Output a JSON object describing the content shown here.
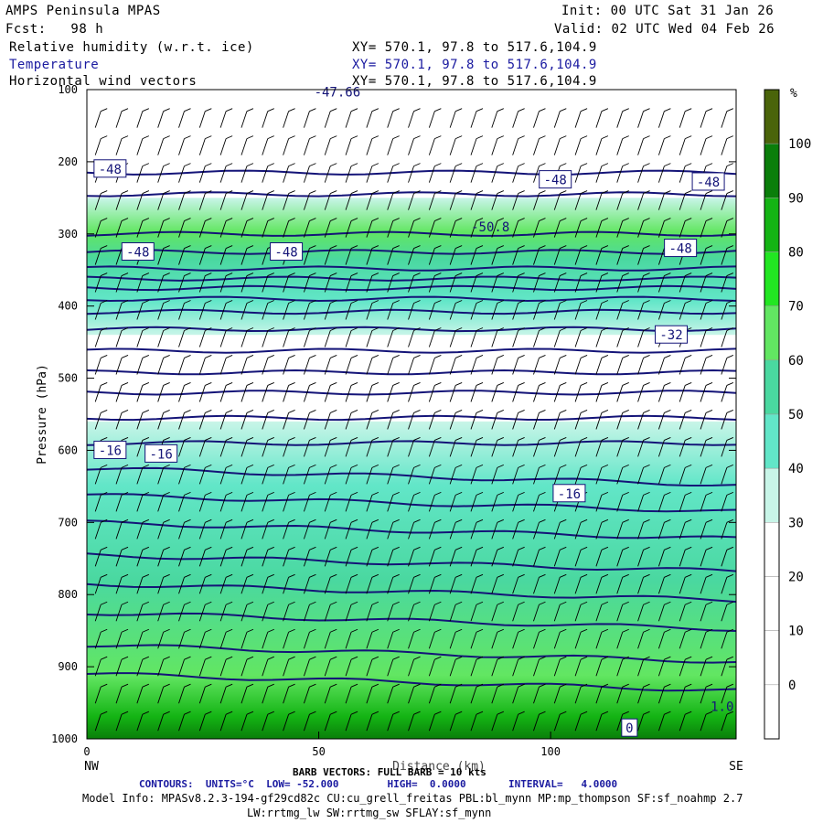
{
  "header": {
    "model": "AMPS Peninsula MPAS",
    "forecast": "Fcst:   98 h",
    "init": "Init: 00 UTC Sat 31 Jan 26",
    "valid": "Valid: 02 UTC Wed 04 Feb 26",
    "fields": [
      {
        "name": "Relative humidity (w.r.t. ice)",
        "xy": "XY= 570.1, 97.8 to 517.6,104.9"
      },
      {
        "name": "Temperature",
        "xy": "XY= 570.1, 97.8 to 517.6,104.9"
      },
      {
        "name": "Horizontal wind vectors",
        "xy": "XY= 570.1, 97.8 to 517.6,104.9"
      }
    ]
  },
  "footer": {
    "barb": "BARB VECTORS: FULL BARB = 10 kts",
    "contours": "CONTOURS:  UNITS=°C  LOW= -52.000        HIGH=  0.0000       INTERVAL=   4.0000",
    "model_info": "Model Info: MPASv8.2.3-194-gf29cd82c CU:cu_grell_freitas PBL:bl_mynn MP:mp_thompson SF:sf_noahmp 2.7",
    "model_info2": "LW:rrtmg_lw SW:rrtmg_sw SFLAY:sf_mynn"
  },
  "chart_data": {
    "type": "heatmap",
    "ylabel": "Pressure (hPa)",
    "xlabel": "Distance (km)",
    "x_range": [
      0,
      140
    ],
    "y_range": [
      1000,
      100
    ],
    "x_ticks": [
      0,
      50,
      100
    ],
    "y_ticks": [
      100,
      200,
      300,
      400,
      500,
      600,
      700,
      800,
      900,
      1000
    ],
    "x_end_labels": {
      "left": "NW",
      "right": "SE"
    },
    "colorbar": {
      "unit": "%",
      "levels": [
        0,
        10,
        20,
        30,
        40,
        50,
        60,
        70,
        80,
        90,
        100
      ],
      "colors": [
        "#ffffff",
        "#ffffff",
        "#ffffff",
        "#ffffff",
        "#c8f5e8",
        "#62e6c8",
        "#4ad8a0",
        "#62e662",
        "#22e622",
        "#14b414",
        "#0a7e0a",
        "#4a640a"
      ]
    },
    "rh_bands": [
      {
        "p_top": 250,
        "p_bottom": 440,
        "rh_min": 40,
        "rh_core": 70
      },
      {
        "p_top": 560,
        "p_bottom": 1000,
        "rh_min": 40,
        "rh_core": 65
      }
    ],
    "isotherm_labels": [
      {
        "text": "-48",
        "x": 5,
        "p": 210
      },
      {
        "text": "-48",
        "x": 101,
        "p": 225
      },
      {
        "text": "-48",
        "x": 134,
        "p": 228
      },
      {
        "text": "-48",
        "x": 11,
        "p": 325
      },
      {
        "text": "-48",
        "x": 43,
        "p": 325
      },
      {
        "text": "-48",
        "x": 128,
        "p": 320
      },
      {
        "text": "-32",
        "x": 126,
        "p": 440
      },
      {
        "text": "-16",
        "x": 5,
        "p": 600
      },
      {
        "text": "-16",
        "x": 16,
        "p": 605
      },
      {
        "text": "-16",
        "x": 104,
        "p": 660
      },
      {
        "text": "0",
        "x": 117,
        "p": 985
      }
    ],
    "extrema_labels": [
      {
        "text": "-47.66",
        "x": 54,
        "p": 103
      },
      {
        "text": "-50.8",
        "x": 87,
        "p": 290
      },
      {
        "text": "1.0",
        "x": 137,
        "p": 955
      }
    ]
  }
}
